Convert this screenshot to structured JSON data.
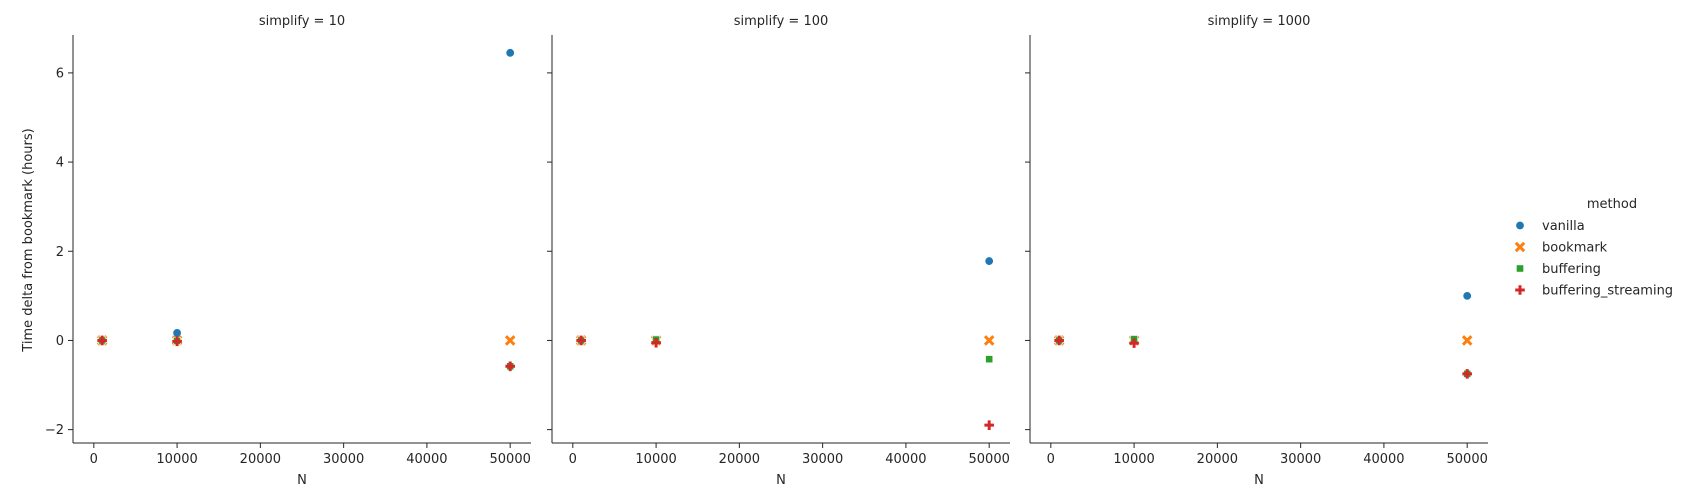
{
  "chart_data": {
    "type": "scatter",
    "ylabel": "Time delta from bookmark (hours)",
    "xlabel": "N",
    "ylim": [
      -2.3,
      6.85
    ],
    "xlim": [
      -2500,
      52500
    ],
    "xticks": [
      0,
      10000,
      20000,
      30000,
      40000,
      50000
    ],
    "yticks": [
      -2,
      0,
      2,
      4,
      6
    ],
    "grid": false,
    "legend": {
      "title": "method",
      "placement": "right",
      "entries": [
        {
          "name": "vanilla",
          "color": "#1f77b4",
          "marker": "circle"
        },
        {
          "name": "bookmark",
          "color": "#ff7f0e",
          "marker": "x"
        },
        {
          "name": "buffering",
          "color": "#2ca02c",
          "marker": "square"
        },
        {
          "name": "buffering_streaming",
          "color": "#d62728",
          "marker": "plus"
        }
      ]
    },
    "panels": [
      {
        "title": "simplify = 10",
        "series": [
          {
            "name": "vanilla",
            "x": [
              1000,
              10000,
              50000
            ],
            "y": [
              0.0,
              0.17,
              6.45
            ]
          },
          {
            "name": "bookmark",
            "x": [
              1000,
              10000,
              50000
            ],
            "y": [
              0.0,
              0.0,
              0.0
            ]
          },
          {
            "name": "buffering",
            "x": [
              1000,
              10000,
              50000
            ],
            "y": [
              0.0,
              -0.01,
              -0.58
            ]
          },
          {
            "name": "buffering_streaming",
            "x": [
              1000,
              10000,
              50000
            ],
            "y": [
              0.0,
              -0.02,
              -0.58
            ]
          }
        ]
      },
      {
        "title": "simplify = 100",
        "series": [
          {
            "name": "vanilla",
            "x": [
              1000,
              10000,
              50000
            ],
            "y": [
              0.0,
              0.02,
              1.78
            ]
          },
          {
            "name": "bookmark",
            "x": [
              1000,
              10000,
              50000
            ],
            "y": [
              0.0,
              0.0,
              0.0
            ]
          },
          {
            "name": "buffering",
            "x": [
              1000,
              10000,
              50000
            ],
            "y": [
              0.0,
              0.02,
              -0.42
            ]
          },
          {
            "name": "buffering_streaming",
            "x": [
              1000,
              10000,
              50000
            ],
            "y": [
              0.0,
              -0.05,
              -1.9
            ]
          }
        ]
      },
      {
        "title": "simplify = 1000",
        "series": [
          {
            "name": "vanilla",
            "x": [
              1000,
              10000,
              50000
            ],
            "y": [
              0.0,
              0.01,
              1.0
            ]
          },
          {
            "name": "bookmark",
            "x": [
              1000,
              10000,
              50000
            ],
            "y": [
              0.0,
              0.0,
              0.0
            ]
          },
          {
            "name": "buffering",
            "x": [
              1000,
              10000,
              50000
            ],
            "y": [
              0.0,
              0.03,
              -0.75
            ]
          },
          {
            "name": "buffering_streaming",
            "x": [
              1000,
              10000,
              50000
            ],
            "y": [
              0.0,
              -0.06,
              -0.75
            ]
          }
        ]
      }
    ]
  }
}
